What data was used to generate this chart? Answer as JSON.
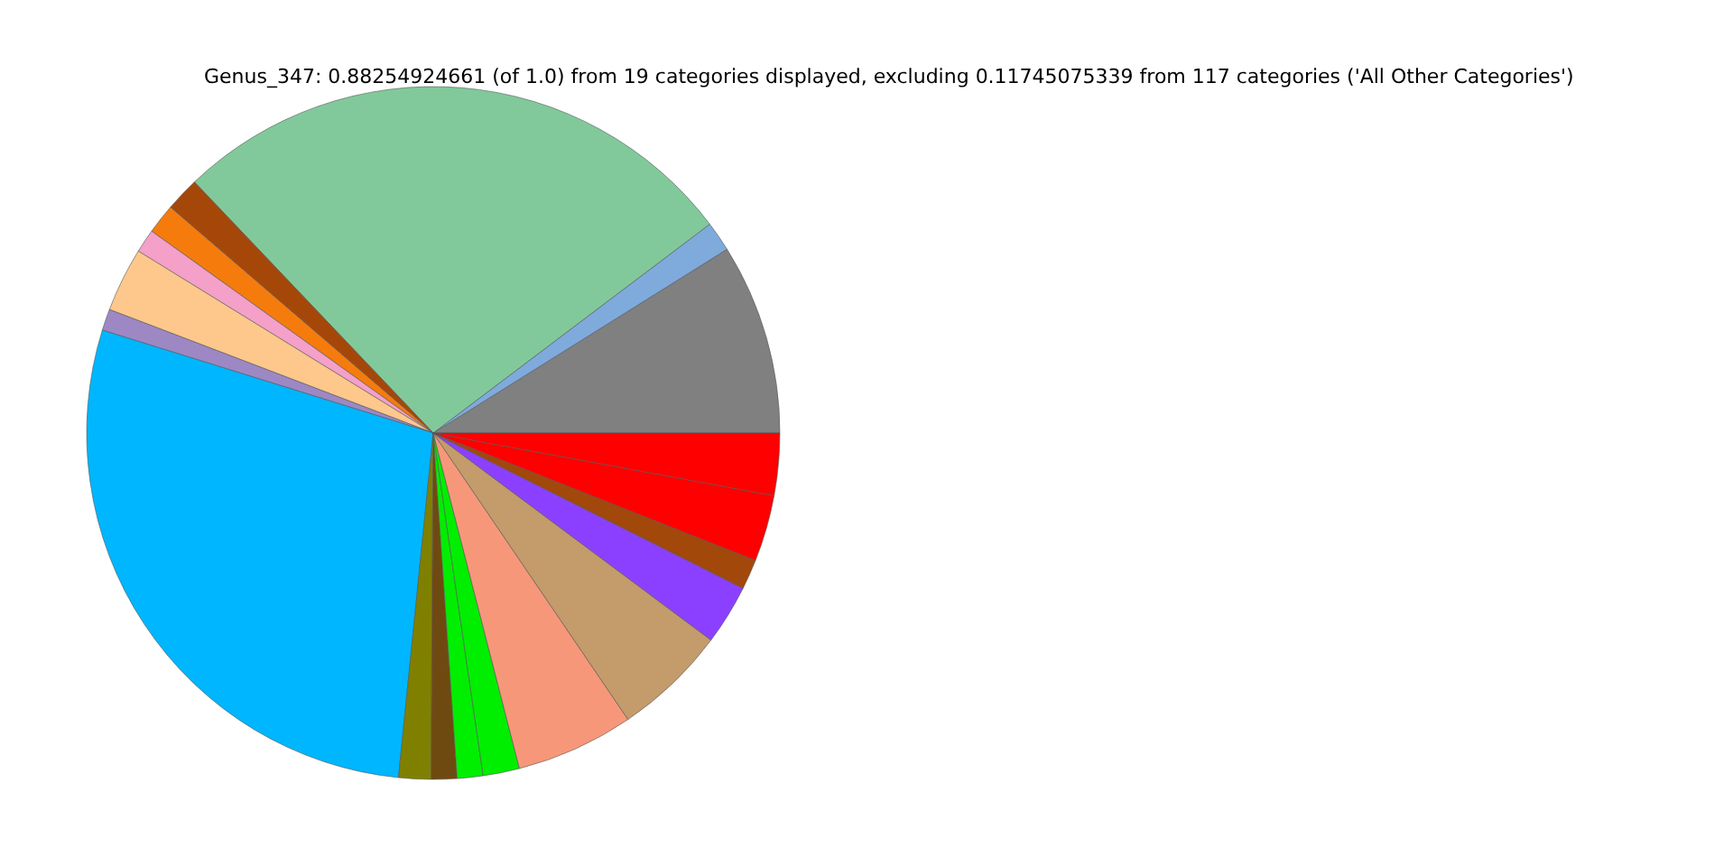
{
  "chart_data": {
    "type": "pie",
    "title": "Genus_347: 0.88254924661 (of 1.0) from 19 categories displayed, excluding 0.11745075339 from 117 categories ('All Other Categories')",
    "categories": [
      null,
      null,
      null,
      null,
      null,
      null,
      null,
      null,
      null,
      null,
      null,
      null,
      null,
      null,
      null,
      null,
      null,
      null,
      null
    ],
    "values": [
      8.9,
      1.4,
      26.8,
      1.6,
      1.4,
      1.1,
      3.0,
      1.0,
      28.2,
      1.5,
      1.2,
      1.2,
      1.7,
      5.5,
      5.3,
      2.8,
      1.4,
      3.1,
      2.9
    ],
    "colors": [
      "#808080",
      "#7faadc",
      "#81c99b",
      "#a6470a",
      "#f57c0c",
      "#f4a0c8",
      "#fec88c",
      "#9d88c4",
      "#00b6ff",
      "#808000",
      "#6f4a10",
      "#00ee00",
      "#00ee00",
      "#f7977a",
      "#c49b6b",
      "#8c40ff",
      "#a3480b",
      "#ff0000",
      "#ff0000"
    ]
  }
}
